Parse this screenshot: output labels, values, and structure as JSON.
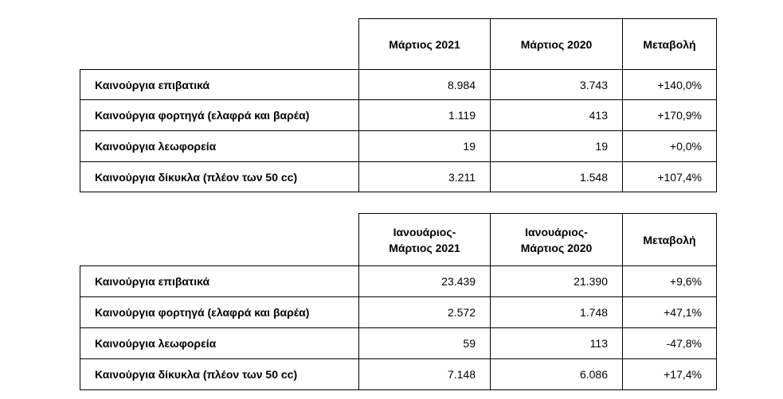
{
  "tables": [
    {
      "headers": [
        "Μάρτιος 2021",
        "Μάρτιος 2020",
        "Μεταβολή"
      ],
      "rows": [
        [
          "Καινούργια επιβατικά",
          "8.984",
          "3.743",
          "+140,0%"
        ],
        [
          "Καινούργια φορτηγά (ελαφρά και βαρέα)",
          "1.119",
          "413",
          "+170,9%"
        ],
        [
          "Καινούργια λεωφορεία",
          "19",
          "19",
          "+0,0%"
        ],
        [
          "Καινούργια δίκυκλα (πλέον των 50 cc)",
          "3.211",
          "1.548",
          "+107,4%"
        ]
      ]
    },
    {
      "headers": [
        "Ιανουάριος-\nΜάρτιος 2021",
        "Ιανουάριος-\nΜάρτιος 2020",
        "Μεταβολή"
      ],
      "rows": [
        [
          "Καινούργια επιβατικά",
          "23.439",
          "21.390",
          "+9,6%"
        ],
        [
          "Καινούργια φορτηγά (ελαφρά και βαρέα)",
          "2.572",
          "1.748",
          "+47,1%"
        ],
        [
          "Καινούργια λεωφορεία",
          "59",
          "113",
          "-47,8%"
        ],
        [
          "Καινούργια δίκυκλα (πλέον των 50 cc)",
          "7.148",
          "6.086",
          "+17,4%"
        ]
      ]
    }
  ]
}
